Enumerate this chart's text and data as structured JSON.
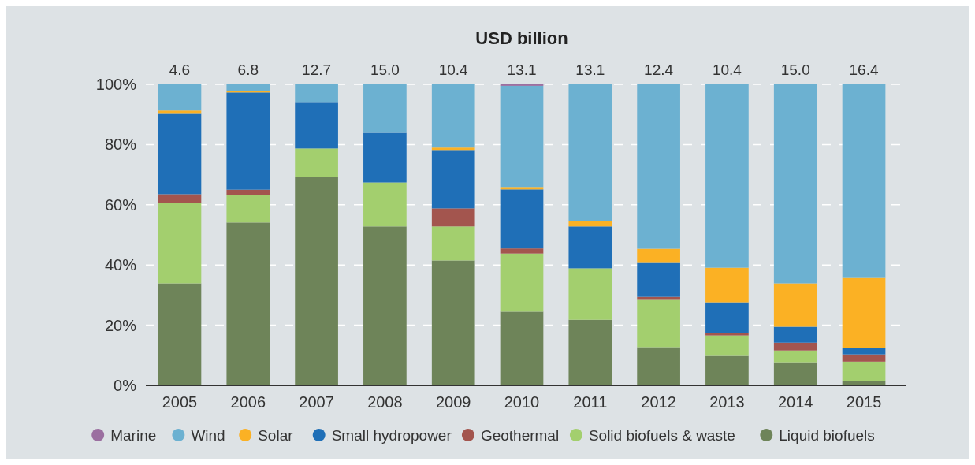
{
  "chart_data": {
    "type": "bar",
    "stacked": true,
    "title": "USD billion",
    "categories": [
      "2005",
      "2006",
      "2007",
      "2008",
      "2009",
      "2010",
      "2011",
      "2012",
      "2013",
      "2014",
      "2015"
    ],
    "series": [
      {
        "name": "Liquid biofuels",
        "color": "#6e8459",
        "values": [
          33.9,
          54.1,
          69.3,
          52.8,
          41.5,
          24.5,
          21.8,
          12.7,
          9.8,
          7.7,
          1.4
        ]
      },
      {
        "name": "Solid biofuels & waste",
        "color": "#a3cf6e",
        "values": [
          26.7,
          9.1,
          9.4,
          14.6,
          11.3,
          19.3,
          17.1,
          15.7,
          6.8,
          3.9,
          6.5
        ]
      },
      {
        "name": "Geothermal",
        "color": "#a3554e",
        "values": [
          2.9,
          1.8,
          0,
          0,
          6.0,
          1.7,
          0,
          1.0,
          0.8,
          2.6,
          2.4
        ]
      },
      {
        "name": "Small hydropower",
        "color": "#1f6fb7",
        "values": [
          26.7,
          32.3,
          15.2,
          16.5,
          19.4,
          19.6,
          13.9,
          11.3,
          10.2,
          5.3,
          2.1
        ]
      },
      {
        "name": "Solar",
        "color": "#fbb124",
        "values": [
          1.1,
          0.5,
          0,
          0,
          0.8,
          0.8,
          1.8,
          4.7,
          11.5,
          14.4,
          23.3
        ]
      },
      {
        "name": "Wind",
        "color": "#6cb1d1",
        "values": [
          8.7,
          2.2,
          6.1,
          16.1,
          21.0,
          33.6,
          45.4,
          54.6,
          60.9,
          66.1,
          64.3
        ]
      },
      {
        "name": "Marine",
        "color": "#9b6fa0",
        "values": [
          0,
          0,
          0,
          0,
          0,
          0.5,
          0,
          0,
          0,
          0,
          0
        ]
      }
    ],
    "annotations": [
      {
        "text": "4.6",
        "x": "2005",
        "y": 100
      },
      {
        "text": "6.8",
        "x": "2006",
        "y": 100
      },
      {
        "text": "12.7",
        "x": "2007",
        "y": 100
      },
      {
        "text": "15.0",
        "x": "2008",
        "y": 100
      },
      {
        "text": "10.4",
        "x": "2009",
        "y": 100
      },
      {
        "text": "13.1",
        "x": "2010",
        "y": 100
      },
      {
        "text": "13.1",
        "x": "2011",
        "y": 100
      },
      {
        "text": "12.4",
        "x": "2012",
        "y": 100
      },
      {
        "text": "10.4",
        "x": "2013",
        "y": 100
      },
      {
        "text": "15.0",
        "x": "2014",
        "y": 100
      },
      {
        "text": "16.4",
        "x": "2015",
        "y": 100
      }
    ],
    "ylim": [
      0,
      100
    ],
    "yticks": [
      {
        "value": 0,
        "label": "0%"
      },
      {
        "value": 20,
        "label": "20%"
      },
      {
        "value": 40,
        "label": "40%"
      },
      {
        "value": 60,
        "label": "60%"
      },
      {
        "value": 80,
        "label": "80%"
      },
      {
        "value": 100,
        "label": "100%"
      }
    ],
    "grid": "y",
    "legend": "bottom"
  }
}
